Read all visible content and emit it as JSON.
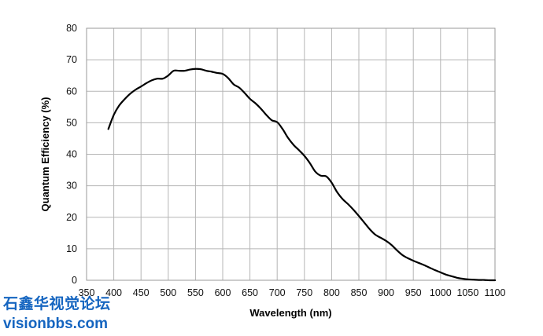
{
  "chart_data": {
    "type": "line",
    "title": "",
    "xlabel": "Wavelength (nm)",
    "ylabel": "Quantum Efficiency (%)",
    "xlim": [
      350,
      1100
    ],
    "ylim": [
      0,
      80
    ],
    "x_ticks": [
      "350",
      "400",
      "450",
      "500",
      "550",
      "600",
      "650",
      "700",
      "750",
      "800",
      "850",
      "900",
      "950",
      "1000",
      "1050",
      "1100"
    ],
    "y_ticks": [
      "0",
      "10",
      "20",
      "30",
      "40",
      "50",
      "60",
      "70",
      "80"
    ],
    "grid": true,
    "legend": "none",
    "series": [
      {
        "color": "#000000",
        "x": [
          390,
          400,
          410,
          420,
          430,
          440,
          450,
          460,
          470,
          480,
          490,
          500,
          510,
          520,
          530,
          540,
          550,
          560,
          570,
          580,
          590,
          600,
          610,
          620,
          630,
          640,
          650,
          660,
          670,
          680,
          690,
          700,
          710,
          720,
          730,
          740,
          750,
          760,
          770,
          780,
          790,
          800,
          810,
          820,
          830,
          840,
          850,
          860,
          870,
          880,
          890,
          900,
          910,
          920,
          930,
          940,
          950,
          960,
          970,
          980,
          990,
          1000,
          1010,
          1020,
          1030,
          1040,
          1050,
          1060,
          1070,
          1080,
          1090,
          1100
        ],
        "y": [
          48,
          52.5,
          55.5,
          57.5,
          59.2,
          60.5,
          61.5,
          62.6,
          63.5,
          64,
          64,
          65,
          66.5,
          66.5,
          66.5,
          66.9,
          67.1,
          67,
          66.5,
          66.2,
          65.8,
          65.5,
          64.2,
          62.2,
          61.2,
          59.5,
          57.6,
          56.2,
          54.5,
          52.5,
          50.8,
          50.2,
          48,
          45.2,
          43,
          41.3,
          39.5,
          37.2,
          34.5,
          33.2,
          33,
          31,
          28,
          25.8,
          24.2,
          22.4,
          20.4,
          18.3,
          16.2,
          14.5,
          13.5,
          12.5,
          11.2,
          9.5,
          8,
          7,
          6.2,
          5.5,
          4.8,
          4,
          3.2,
          2.5,
          1.8,
          1.3,
          0.8,
          0.5,
          0.3,
          0.2,
          0.1,
          0.1,
          0,
          0
        ]
      }
    ]
  },
  "watermark": {
    "chinese": "石鑫华视觉论坛",
    "url": "visionbbs.com"
  },
  "colors": {
    "watermark": "#1565c0",
    "curve": "#000000",
    "grid": "#b5b5b5"
  }
}
